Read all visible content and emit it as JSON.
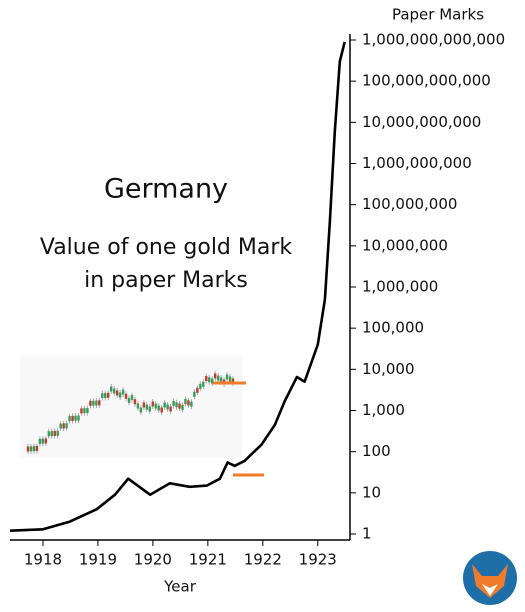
{
  "chart_data": {
    "type": "line",
    "title": "Germany",
    "subtitle": [
      "Value of one gold Mark",
      "in paper Marks"
    ],
    "y_label": "Paper Marks",
    "x_label": "Year",
    "log_scale": true,
    "color": "#000000",
    "x": [
      1917.4,
      1918.0,
      1918.49,
      1918.98,
      1919.31,
      1919.55,
      1919.95,
      1920.31,
      1920.67,
      1920.98,
      1921.22,
      1921.36,
      1921.49,
      1921.67,
      1921.98,
      1922.22,
      1922.4,
      1922.62,
      1922.76,
      1923.0,
      1923.13,
      1923.22,
      1923.31,
      1923.4,
      1923.49
    ],
    "values": [
      1.2,
      1.3,
      2,
      4,
      9,
      22,
      9,
      17,
      14,
      15,
      22,
      55,
      45,
      60,
      150,
      450,
      1700,
      6500,
      5000,
      40000,
      500000,
      40000000,
      6000000000,
      300000000000,
      900000000000
    ],
    "xlim": [
      1917.4,
      1923.55
    ],
    "xticks": [
      1918,
      1919,
      1920,
      1921,
      1922,
      1923
    ],
    "ylim": [
      1,
      1000000000000
    ],
    "yticks": [
      1,
      10,
      100,
      {
        "value": 1000,
        "label": "1,000"
      },
      {
        "value": 10000,
        "label": "10,000"
      },
      {
        "value": 100000,
        "label": "100,000"
      },
      {
        "value": 1000000,
        "label": "1,000,000"
      },
      {
        "value": 10000000,
        "label": "10,000,000"
      },
      {
        "value": 100000000,
        "label": "100,000,000"
      },
      {
        "value": 1000000000,
        "label": "1,000,000,000"
      },
      {
        "value": 10000000000,
        "label": "10,000,000,000"
      },
      {
        "value": 100000000000,
        "label": "100,000,000,000"
      },
      {
        "value": 1000000000000,
        "label": "1,000,000,000,000"
      }
    ]
  }
}
